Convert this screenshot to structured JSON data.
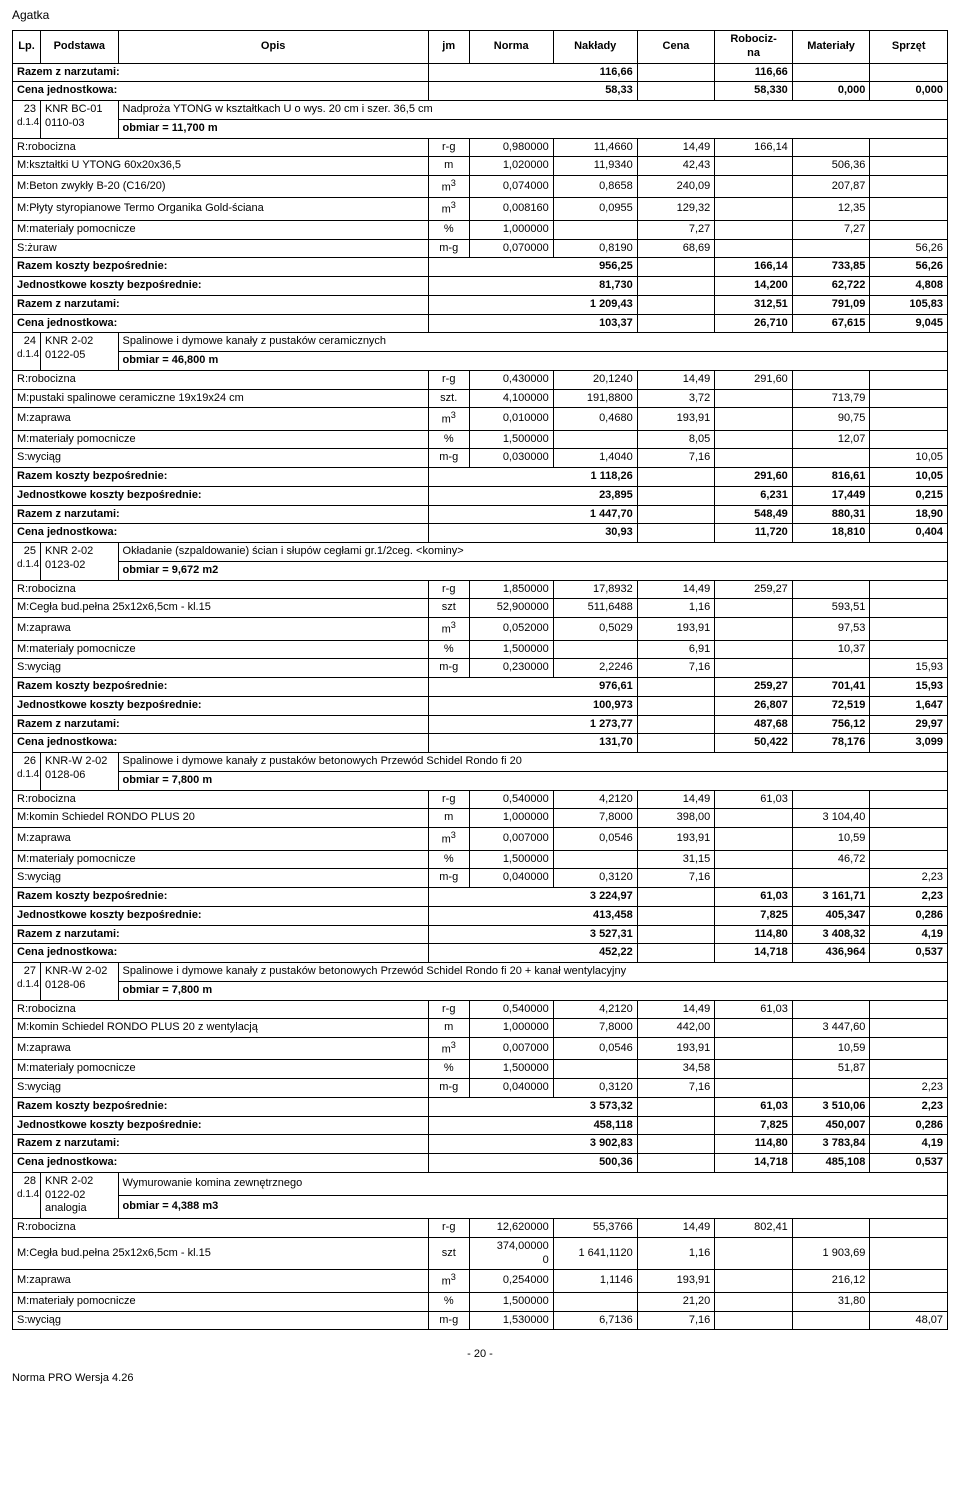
{
  "header": {
    "title": "Agatka"
  },
  "table": {
    "headers": {
      "lp": "Lp.",
      "podstawa": "Podstawa",
      "opis": "Opis",
      "jm": "jm",
      "norma": "Norma",
      "naklady": "Nakłady",
      "cena": "Cena",
      "robocizna": "Robociz-\nna",
      "materialy": "Materiały",
      "sprzet": "Sprzęt"
    }
  },
  "blocks": [
    {
      "pre_summary": [
        {
          "label": "Razem z narzutami:",
          "val": "116,66",
          "r": "116,66",
          "m": "",
          "s": ""
        },
        {
          "label": "Cena jednostkowa:",
          "val": "58,33",
          "r": "58,330",
          "m": "0,000",
          "s": "0,000"
        }
      ],
      "head": {
        "lp": "23",
        "pod": "KNR BC-01 0110-03",
        "dsub": "d.1.4",
        "title": "Nadproża YTONG w kształtkach U o wys. 20 cm i szer. 36,5 cm",
        "obmiar": "obmiar  = 11,700 m"
      },
      "rows": [
        {
          "name": "R:robocizna",
          "jm": "r-g",
          "norma": "0,980000",
          "nakl": "11,4660",
          "cena": "14,49",
          "r": "166,14",
          "m": "",
          "s": ""
        },
        {
          "name": "M:kształtki U YTONG 60x20x36,5",
          "jm": "m",
          "norma": "1,020000",
          "nakl": "11,9340",
          "cena": "42,43",
          "r": "",
          "m": "506,36",
          "s": ""
        },
        {
          "name": "M:Beton zwykły B-20 (C16/20)",
          "jm": "m3",
          "norma": "0,074000",
          "nakl": "0,8658",
          "cena": "240,09",
          "r": "",
          "m": "207,87",
          "s": ""
        },
        {
          "name": "M:Płyty styropianowe Termo Organika Gold-ściana",
          "jm": "m3",
          "norma": "0,008160",
          "nakl": "0,0955",
          "cena": "129,32",
          "r": "",
          "m": "12,35",
          "s": ""
        },
        {
          "name": "M:materiały pomocnicze",
          "jm": "%",
          "norma": "1,000000",
          "nakl": "",
          "cena": "7,27",
          "r": "",
          "m": "7,27",
          "s": ""
        },
        {
          "name": "S:żuraw",
          "jm": "m-g",
          "norma": "0,070000",
          "nakl": "0,8190",
          "cena": "68,69",
          "r": "",
          "m": "",
          "s": "56,26"
        }
      ],
      "summary": [
        {
          "label": "Razem koszty bezpośrednie:",
          "val": "956,25",
          "r": "166,14",
          "m": "733,85",
          "s": "56,26"
        },
        {
          "label": "Jednostkowe koszty bezpośrednie:",
          "val": "81,730",
          "r": "14,200",
          "m": "62,722",
          "s": "4,808"
        },
        {
          "label": "Razem z narzutami:",
          "val": "1 209,43",
          "r": "312,51",
          "m": "791,09",
          "s": "105,83"
        },
        {
          "label": "Cena jednostkowa:",
          "val": "103,37",
          "r": "26,710",
          "m": "67,615",
          "s": "9,045"
        }
      ]
    },
    {
      "head": {
        "lp": "24",
        "pod": "KNR 2-02 0122-05",
        "dsub": "d.1.4",
        "title": "Spalinowe i dymowe kanały z pustaków ceramicznych",
        "obmiar": "obmiar  = 46,800 m"
      },
      "rows": [
        {
          "name": "R:robocizna",
          "jm": "r-g",
          "norma": "0,430000",
          "nakl": "20,1240",
          "cena": "14,49",
          "r": "291,60",
          "m": "",
          "s": ""
        },
        {
          "name": "M:pustaki spalinowe ceramiczne 19x19x24 cm",
          "jm": "szt.",
          "norma": "4,100000",
          "nakl": "191,8800",
          "cena": "3,72",
          "r": "",
          "m": "713,79",
          "s": ""
        },
        {
          "name": "M:zaprawa",
          "jm": "m3",
          "norma": "0,010000",
          "nakl": "0,4680",
          "cena": "193,91",
          "r": "",
          "m": "90,75",
          "s": ""
        },
        {
          "name": "M:materiały pomocnicze",
          "jm": "%",
          "norma": "1,500000",
          "nakl": "",
          "cena": "8,05",
          "r": "",
          "m": "12,07",
          "s": ""
        },
        {
          "name": "S:wyciąg",
          "jm": "m-g",
          "norma": "0,030000",
          "nakl": "1,4040",
          "cena": "7,16",
          "r": "",
          "m": "",
          "s": "10,05"
        }
      ],
      "summary": [
        {
          "label": "Razem koszty bezpośrednie:",
          "val": "1 118,26",
          "r": "291,60",
          "m": "816,61",
          "s": "10,05"
        },
        {
          "label": "Jednostkowe koszty bezpośrednie:",
          "val": "23,895",
          "r": "6,231",
          "m": "17,449",
          "s": "0,215"
        },
        {
          "label": "Razem z narzutami:",
          "val": "1 447,70",
          "r": "548,49",
          "m": "880,31",
          "s": "18,90"
        },
        {
          "label": "Cena jednostkowa:",
          "val": "30,93",
          "r": "11,720",
          "m": "18,810",
          "s": "0,404"
        }
      ]
    },
    {
      "head": {
        "lp": "25",
        "pod": "KNR 2-02 0123-02",
        "dsub": "d.1.4",
        "title": "Okładanie (szpaldowanie) ścian i słupów cegłami gr.1/2ceg. <kominy>",
        "obmiar": "obmiar  = 9,672 m2"
      },
      "rows": [
        {
          "name": "R:robocizna",
          "jm": "r-g",
          "norma": "1,850000",
          "nakl": "17,8932",
          "cena": "14,49",
          "r": "259,27",
          "m": "",
          "s": ""
        },
        {
          "name": "M:Cegła bud.pełna 25x12x6,5cm - kl.15",
          "jm": "szt",
          "norma": "52,900000",
          "nakl": "511,6488",
          "cena": "1,16",
          "r": "",
          "m": "593,51",
          "s": ""
        },
        {
          "name": "M:zaprawa",
          "jm": "m3",
          "norma": "0,052000",
          "nakl": "0,5029",
          "cena": "193,91",
          "r": "",
          "m": "97,53",
          "s": ""
        },
        {
          "name": "M:materiały pomocnicze",
          "jm": "%",
          "norma": "1,500000",
          "nakl": "",
          "cena": "6,91",
          "r": "",
          "m": "10,37",
          "s": ""
        },
        {
          "name": "S:wyciąg",
          "jm": "m-g",
          "norma": "0,230000",
          "nakl": "2,2246",
          "cena": "7,16",
          "r": "",
          "m": "",
          "s": "15,93"
        }
      ],
      "summary": [
        {
          "label": "Razem koszty bezpośrednie:",
          "val": "976,61",
          "r": "259,27",
          "m": "701,41",
          "s": "15,93"
        },
        {
          "label": "Jednostkowe koszty bezpośrednie:",
          "val": "100,973",
          "r": "26,807",
          "m": "72,519",
          "s": "1,647"
        },
        {
          "label": "Razem z narzutami:",
          "val": "1 273,77",
          "r": "487,68",
          "m": "756,12",
          "s": "29,97"
        },
        {
          "label": "Cena jednostkowa:",
          "val": "131,70",
          "r": "50,422",
          "m": "78,176",
          "s": "3,099"
        }
      ]
    },
    {
      "head": {
        "lp": "26",
        "pod": "KNR-W 2-02 0128-06",
        "dsub": "d.1.4",
        "title": "Spalinowe i dymowe kanały z pustaków betonowych Przewód Schidel Rondo fi 20",
        "obmiar": "obmiar  = 7,800 m"
      },
      "rows": [
        {
          "name": "R:robocizna",
          "jm": "r-g",
          "norma": "0,540000",
          "nakl": "4,2120",
          "cena": "14,49",
          "r": "61,03",
          "m": "",
          "s": ""
        },
        {
          "name": "M:komin Schiedel RONDO PLUS 20",
          "jm": "m",
          "norma": "1,000000",
          "nakl": "7,8000",
          "cena": "398,00",
          "r": "",
          "m": "3 104,40",
          "s": ""
        },
        {
          "name": "M:zaprawa",
          "jm": "m3",
          "norma": "0,007000",
          "nakl": "0,0546",
          "cena": "193,91",
          "r": "",
          "m": "10,59",
          "s": ""
        },
        {
          "name": "M:materiały pomocnicze",
          "jm": "%",
          "norma": "1,500000",
          "nakl": "",
          "cena": "31,15",
          "r": "",
          "m": "46,72",
          "s": ""
        },
        {
          "name": "S:wyciąg",
          "jm": "m-g",
          "norma": "0,040000",
          "nakl": "0,3120",
          "cena": "7,16",
          "r": "",
          "m": "",
          "s": "2,23"
        }
      ],
      "summary": [
        {
          "label": "Razem koszty bezpośrednie:",
          "val": "3 224,97",
          "r": "61,03",
          "m": "3 161,71",
          "s": "2,23"
        },
        {
          "label": "Jednostkowe koszty bezpośrednie:",
          "val": "413,458",
          "r": "7,825",
          "m": "405,347",
          "s": "0,286"
        },
        {
          "label": "Razem z narzutami:",
          "val": "3 527,31",
          "r": "114,80",
          "m": "3 408,32",
          "s": "4,19"
        },
        {
          "label": "Cena jednostkowa:",
          "val": "452,22",
          "r": "14,718",
          "m": "436,964",
          "s": "0,537"
        }
      ]
    },
    {
      "head": {
        "lp": "27",
        "pod": "KNR-W 2-02 0128-06",
        "dsub": "d.1.4",
        "title": "Spalinowe i dymowe kanały z pustaków betonowych Przewód Schidel Rondo fi 20 + kanał wentylacyjny",
        "obmiar": "obmiar  = 7,800 m"
      },
      "rows": [
        {
          "name": "R:robocizna",
          "jm": "r-g",
          "norma": "0,540000",
          "nakl": "4,2120",
          "cena": "14,49",
          "r": "61,03",
          "m": "",
          "s": ""
        },
        {
          "name": "M:komin Schiedel RONDO PLUS 20 z wentylacją",
          "jm": "m",
          "norma": "1,000000",
          "nakl": "7,8000",
          "cena": "442,00",
          "r": "",
          "m": "3 447,60",
          "s": ""
        },
        {
          "name": "M:zaprawa",
          "jm": "m3",
          "norma": "0,007000",
          "nakl": "0,0546",
          "cena": "193,91",
          "r": "",
          "m": "10,59",
          "s": ""
        },
        {
          "name": "M:materiały pomocnicze",
          "jm": "%",
          "norma": "1,500000",
          "nakl": "",
          "cena": "34,58",
          "r": "",
          "m": "51,87",
          "s": ""
        },
        {
          "name": "S:wyciąg",
          "jm": "m-g",
          "norma": "0,040000",
          "nakl": "0,3120",
          "cena": "7,16",
          "r": "",
          "m": "",
          "s": "2,23"
        }
      ],
      "summary": [
        {
          "label": "Razem koszty bezpośrednie:",
          "val": "3 573,32",
          "r": "61,03",
          "m": "3 510,06",
          "s": "2,23"
        },
        {
          "label": "Jednostkowe koszty bezpośrednie:",
          "val": "458,118",
          "r": "7,825",
          "m": "450,007",
          "s": "0,286"
        },
        {
          "label": "Razem z narzutami:",
          "val": "3 902,83",
          "r": "114,80",
          "m": "3 783,84",
          "s": "4,19"
        },
        {
          "label": "Cena jednostkowa:",
          "val": "500,36",
          "r": "14,718",
          "m": "485,108",
          "s": "0,537"
        }
      ]
    },
    {
      "head": {
        "lp": "28",
        "pod": "KNR 2-02 0122-02 analogia",
        "dsub": "d.1.4",
        "title": "Wymurowanie komina zewnętrznego",
        "obmiar": "obmiar  = 4,388 m3"
      },
      "rows": [
        {
          "name": "R:robocizna",
          "jm": "r-g",
          "norma": "12,620000",
          "nakl": "55,3766",
          "cena": "14,49",
          "r": "802,41",
          "m": "",
          "s": ""
        },
        {
          "name": "M:Cegła bud.pełna 25x12x6,5cm - kl.15",
          "jm": "szt",
          "norma": "374,00000\n0",
          "nakl": "1 641,1120",
          "cena": "1,16",
          "r": "",
          "m": "1 903,69",
          "s": ""
        },
        {
          "name": "M:zaprawa",
          "jm": "m3",
          "norma": "0,254000",
          "nakl": "1,1146",
          "cena": "193,91",
          "r": "",
          "m": "216,12",
          "s": ""
        },
        {
          "name": "M:materiały pomocnicze",
          "jm": "%",
          "norma": "1,500000",
          "nakl": "",
          "cena": "21,20",
          "r": "",
          "m": "31,80",
          "s": ""
        },
        {
          "name": "S:wyciąg",
          "jm": "m-g",
          "norma": "1,530000",
          "nakl": "6,7136",
          "cena": "7,16",
          "r": "",
          "m": "",
          "s": "48,07"
        }
      ]
    }
  ],
  "footer": {
    "page": "- 20 -",
    "software": "Norma PRO Wersja 4.26"
  }
}
